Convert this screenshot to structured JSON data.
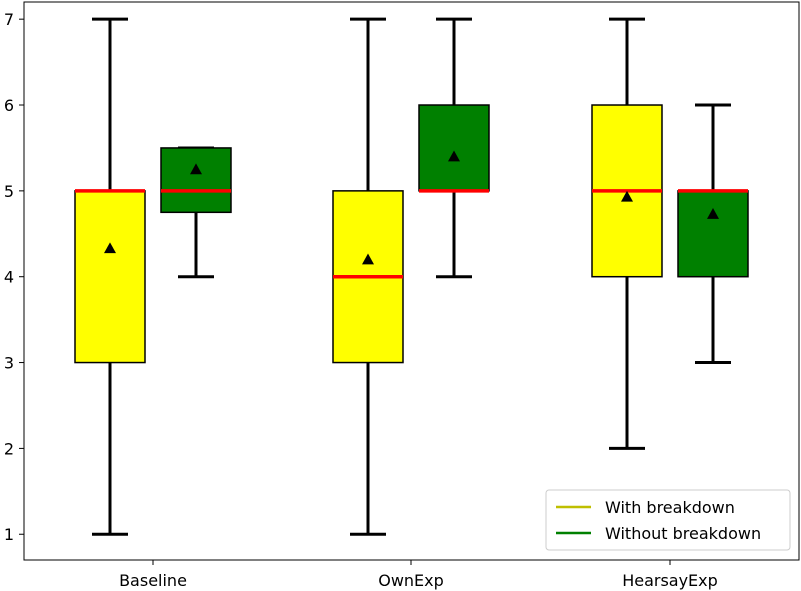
{
  "chart_data": {
    "type": "boxplot",
    "title": "",
    "xlabel": "",
    "ylabel": "",
    "ylim": [
      0.7,
      7.2
    ],
    "yticks": [
      1,
      2,
      3,
      4,
      5,
      6,
      7
    ],
    "categories": [
      "Baseline",
      "OwnExp",
      "HearsayExp"
    ],
    "series": [
      {
        "name": "With breakdown",
        "color": "#ffff00",
        "boxes": [
          {
            "whisker_low": 1,
            "q1": 3,
            "median": 5,
            "q3": 5,
            "whisker_high": 7,
            "mean": 4.33
          },
          {
            "whisker_low": 1,
            "q1": 3,
            "median": 4,
            "q3": 5,
            "whisker_high": 7,
            "mean": 4.2
          },
          {
            "whisker_low": 2,
            "q1": 4,
            "median": 5,
            "q3": 6,
            "whisker_high": 7,
            "mean": 4.93
          }
        ]
      },
      {
        "name": "Without breakdown",
        "color": "#008000",
        "boxes": [
          {
            "whisker_low": 4,
            "q1": 4.75,
            "median": 5,
            "q3": 5.5,
            "whisker_high": 5.5,
            "mean": 5.25
          },
          {
            "whisker_low": 4,
            "q1": 5,
            "median": 5,
            "q3": 6,
            "whisker_high": 7,
            "mean": 5.4
          },
          {
            "whisker_low": 3,
            "q1": 4,
            "median": 5,
            "q3": 5,
            "whisker_high": 6,
            "mean": 4.73
          }
        ]
      }
    ],
    "median_color": "#ff0000",
    "mean_marker": "triangle",
    "grid": false,
    "legend_position": "bottom-right",
    "legend_line_colors": [
      "#bfbf00",
      "#008000"
    ]
  }
}
